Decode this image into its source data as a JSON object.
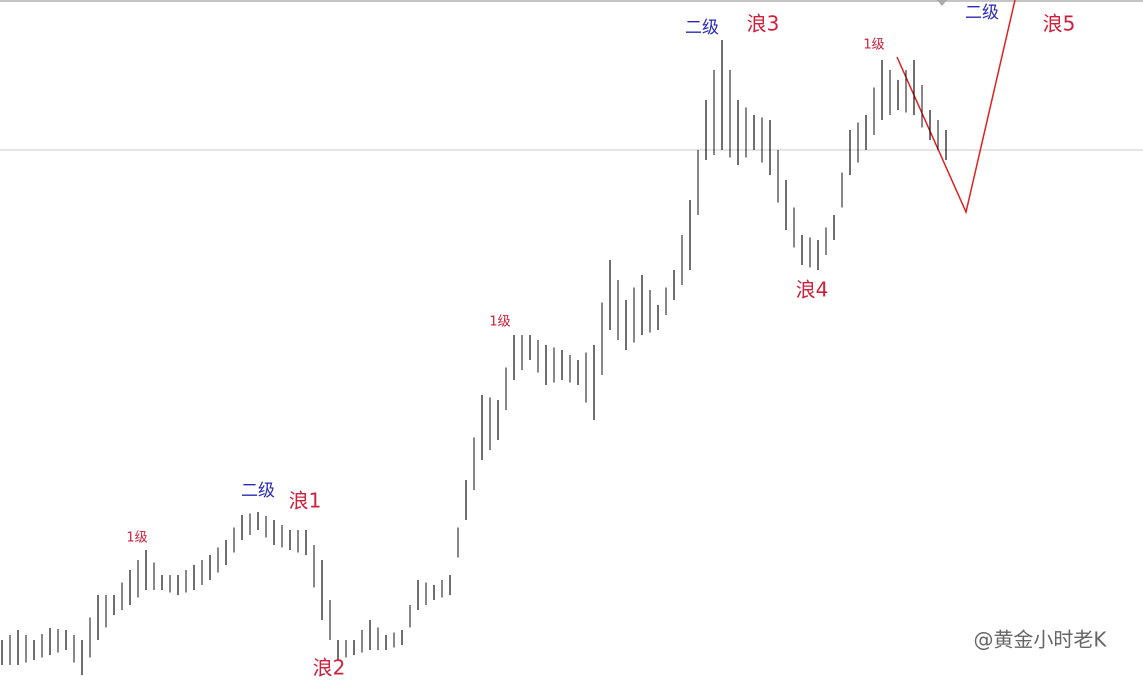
{
  "chart_data": {
    "type": "range",
    "series": [
      {
        "name": "high",
        "color": "#111111",
        "values": [
          44,
          54,
          44,
          56,
          54,
          44,
          89,
          89,
          114,
          134,
          109,
          109,
          119,
          129,
          144,
          169,
          172,
          164,
          154,
          154,
          124,
          44,
          44,
          64,
          49,
          54,
          104,
          99,
          109,
          204,
          289,
          284,
          349,
          349,
          339,
          334,
          324,
          339,
          424,
          384,
          409,
          379,
          414,
          484,
          584,
          644,
          584,
          569,
          564,
          504,
          449,
          444,
          469,
          554,
          569,
          624,
          604,
          624,
          574,
          554
        ]
      },
      {
        "name": "low",
        "color": "#111111",
        "values": [
          19,
          19,
          24,
          29,
          34,
          9,
          44,
          69,
          79,
          94,
          94,
          89,
          94,
          104,
          119,
          144,
          154,
          139,
          134,
          129,
          64,
          24,
          29,
          34,
          34,
          39,
          74,
          84,
          89,
          164,
          224,
          244,
          304,
          324,
          299,
          304,
          299,
          264,
          354,
          334,
          349,
          354,
          384,
          414,
          524,
          534,
          519,
          534,
          509,
          454,
          419,
          414,
          444,
          509,
          534,
          564,
          574,
          569,
          544,
          524
        ]
      }
    ],
    "ylim": [
      0,
      684
    ],
    "annotations": [
      "1级",
      "二级",
      "浪1",
      "浪2",
      "1级",
      "二级",
      "浪3",
      "浪4",
      "1级",
      "二级",
      "浪5"
    ],
    "watermark": "@黄金小时老K"
  }
}
